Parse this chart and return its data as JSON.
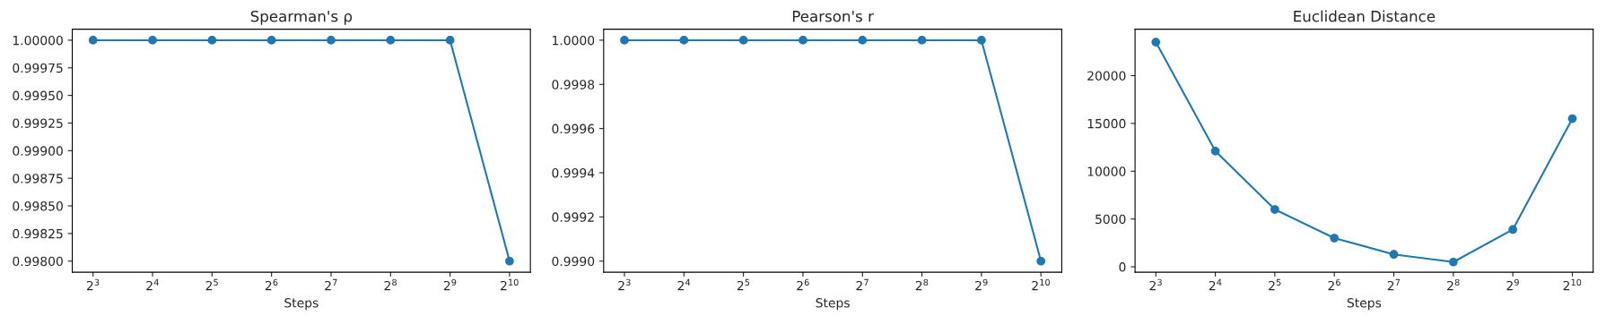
{
  "chart_data": [
    {
      "type": "line",
      "title": "Spearman's ρ",
      "xlabel": "Steps",
      "log": "x",
      "marker": "circle",
      "line_style": "solid",
      "grid": false,
      "x": [
        8,
        16,
        32,
        64,
        128,
        256,
        512,
        1024
      ],
      "series": [
        {
          "color": "#1f77b4",
          "values": [
            1.0,
            1.0,
            1.0,
            1.0,
            1.0,
            1.0,
            1.0,
            0.998
          ]
        }
      ],
      "xlim": [
        6.28,
        1305
      ],
      "xticks": [
        {
          "value": 8,
          "label": "2$^{3}$"
        },
        {
          "value": 16,
          "label": "2$^{4}$"
        },
        {
          "value": 32,
          "label": "2$^{5}$"
        },
        {
          "value": 64,
          "label": "2$^{6}$"
        },
        {
          "value": 128,
          "label": "2$^{7}$"
        },
        {
          "value": 256,
          "label": "2$^{8}$"
        },
        {
          "value": 512,
          "label": "2$^{9}$"
        },
        {
          "value": 1024,
          "label": "2$^{10}$"
        }
      ],
      "ylim": [
        0.9979,
        1.0001
      ],
      "yticks": [
        {
          "value": 0.998,
          "label": "0.99800"
        },
        {
          "value": 0.99825,
          "label": "0.99825"
        },
        {
          "value": 0.9985,
          "label": "0.99850"
        },
        {
          "value": 0.99875,
          "label": "0.99875"
        },
        {
          "value": 0.999,
          "label": "0.99900"
        },
        {
          "value": 0.99925,
          "label": "0.99925"
        },
        {
          "value": 0.9995,
          "label": "0.99950"
        },
        {
          "value": 0.99975,
          "label": "0.99975"
        },
        {
          "value": 1.0,
          "label": "1.00000"
        }
      ]
    },
    {
      "type": "line",
      "title": "Pearson's r",
      "xlabel": "Steps",
      "log": "x",
      "marker": "circle",
      "line_style": "solid",
      "grid": false,
      "x": [
        8,
        16,
        32,
        64,
        128,
        256,
        512,
        1024
      ],
      "series": [
        {
          "color": "#1f77b4",
          "values": [
            1.0,
            1.0,
            1.0,
            1.0,
            1.0,
            1.0,
            1.0,
            0.999
          ]
        }
      ],
      "xlim": [
        6.28,
        1305
      ],
      "xticks": [
        {
          "value": 8,
          "label": "2$^{3}$"
        },
        {
          "value": 16,
          "label": "2$^{4}$"
        },
        {
          "value": 32,
          "label": "2$^{5}$"
        },
        {
          "value": 64,
          "label": "2$^{6}$"
        },
        {
          "value": 128,
          "label": "2$^{7}$"
        },
        {
          "value": 256,
          "label": "2$^{8}$"
        },
        {
          "value": 512,
          "label": "2$^{9}$"
        },
        {
          "value": 1024,
          "label": "2$^{10}$"
        }
      ],
      "ylim": [
        0.99895,
        1.00005
      ],
      "yticks": [
        {
          "value": 0.999,
          "label": "0.9990"
        },
        {
          "value": 0.9992,
          "label": "0.9992"
        },
        {
          "value": 0.9994,
          "label": "0.9994"
        },
        {
          "value": 0.9996,
          "label": "0.9996"
        },
        {
          "value": 0.9998,
          "label": "0.9998"
        },
        {
          "value": 1.0,
          "label": "1.0000"
        }
      ]
    },
    {
      "type": "line",
      "title": "Euclidean Distance",
      "xlabel": "Steps",
      "log": "x",
      "marker": "circle",
      "line_style": "solid",
      "grid": false,
      "x": [
        8,
        16,
        32,
        64,
        128,
        256,
        512,
        1024
      ],
      "series": [
        {
          "color": "#1f77b4",
          "values": [
            23500,
            12100,
            6000,
            3000,
            1300,
            500,
            3900,
            15500
          ]
        }
      ],
      "xlim": [
        6.28,
        1305
      ],
      "xticks": [
        {
          "value": 8,
          "label": "2$^{3}$"
        },
        {
          "value": 16,
          "label": "2$^{4}$"
        },
        {
          "value": 32,
          "label": "2$^{5}$"
        },
        {
          "value": 64,
          "label": "2$^{6}$"
        },
        {
          "value": 128,
          "label": "2$^{7}$"
        },
        {
          "value": 256,
          "label": "2$^{8}$"
        },
        {
          "value": 512,
          "label": "2$^{9}$"
        },
        {
          "value": 1024,
          "label": "2$^{10}$"
        }
      ],
      "ylim": [
        -560,
        24860
      ],
      "yticks": [
        0,
        5000,
        10000,
        15000,
        20000
      ]
    }
  ]
}
